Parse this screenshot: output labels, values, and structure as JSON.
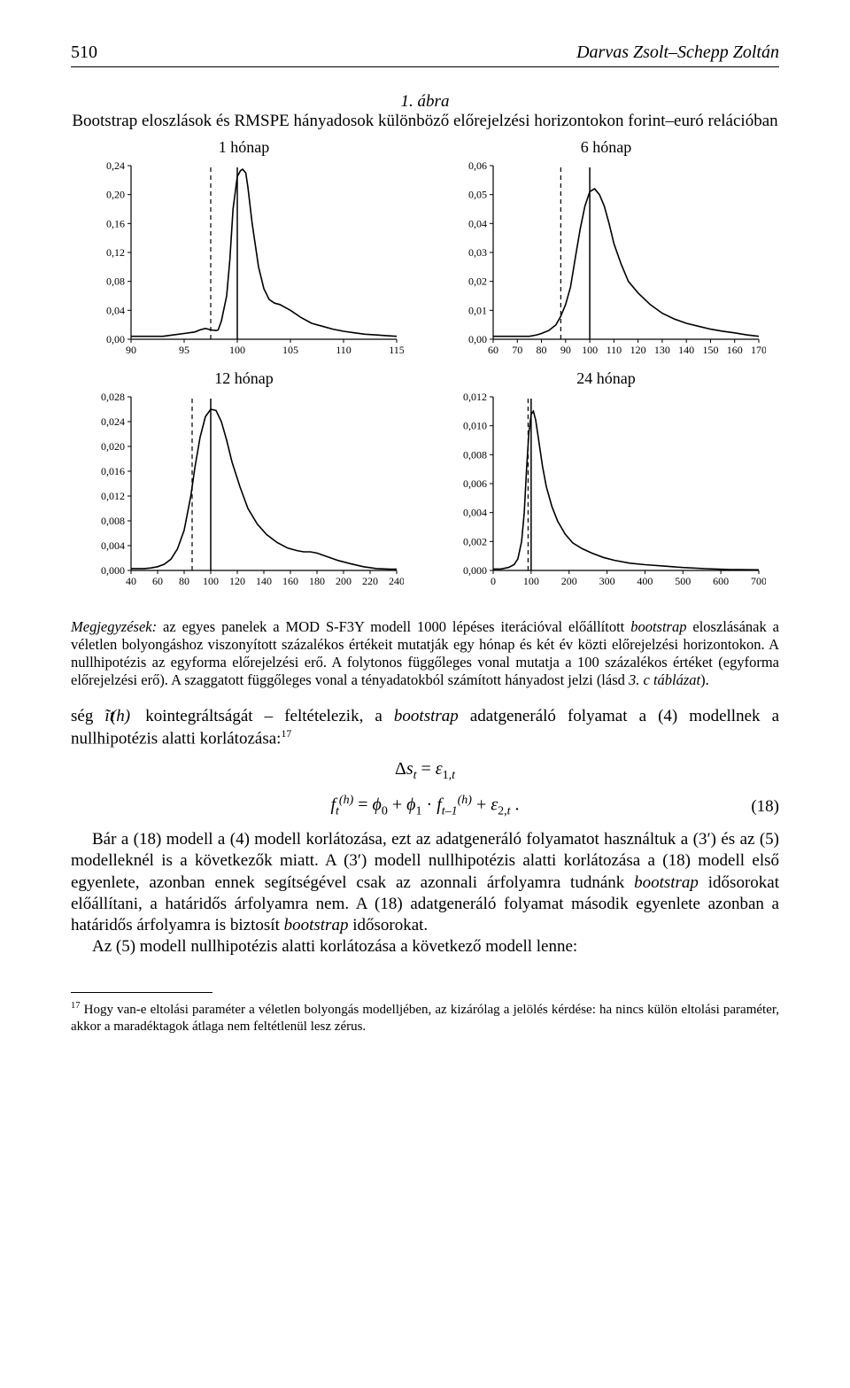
{
  "meta": {
    "at": "kointegráltságát – feltételezik, a"
  },
  "header": {
    "page_number": "510",
    "authors": "Darvas Zsolt–Schepp Zoltán"
  },
  "figure": {
    "label": "1. ábra",
    "caption": "Bootstrap eloszlások és RMSPE hányadosok különböző előrejelzési horizontokon forint–euró relációban",
    "axis_style": {
      "axis_color": "#000000",
      "curve_color": "#000000",
      "solid_line_color": "#000000",
      "dashed_line_color": "#000000",
      "tick_font_size": 12,
      "title_font_size": 18,
      "background": "#ffffff"
    },
    "panels": [
      {
        "title": "1 hónap",
        "xlim": [
          90,
          115
        ],
        "xticks": [
          90,
          95,
          100,
          105,
          110,
          115
        ],
        "ylim": [
          0,
          0.24
        ],
        "yticks": [
          0.0,
          0.04,
          0.08,
          0.12,
          0.16,
          0.2,
          0.24
        ],
        "yformat": "0,00",
        "solid_x": 100,
        "dashed_x": 97.5,
        "curve": [
          [
            90,
            0.004
          ],
          [
            91,
            0.004
          ],
          [
            92,
            0.004
          ],
          [
            93,
            0.004
          ],
          [
            94,
            0.006
          ],
          [
            95,
            0.008
          ],
          [
            96,
            0.01
          ],
          [
            96.5,
            0.013
          ],
          [
            97,
            0.015
          ],
          [
            97.5,
            0.013
          ],
          [
            98,
            0.012
          ],
          [
            98.2,
            0.013
          ],
          [
            98.5,
            0.025
          ],
          [
            99,
            0.06
          ],
          [
            99.3,
            0.11
          ],
          [
            99.6,
            0.18
          ],
          [
            100,
            0.225
          ],
          [
            100.3,
            0.233
          ],
          [
            100.5,
            0.235
          ],
          [
            100.8,
            0.23
          ],
          [
            101,
            0.21
          ],
          [
            101.4,
            0.16
          ],
          [
            102,
            0.1
          ],
          [
            102.5,
            0.07
          ],
          [
            103,
            0.055
          ],
          [
            103.5,
            0.05
          ],
          [
            104,
            0.048
          ],
          [
            105,
            0.04
          ],
          [
            106,
            0.03
          ],
          [
            107,
            0.022
          ],
          [
            108,
            0.018
          ],
          [
            109,
            0.014
          ],
          [
            110,
            0.011
          ],
          [
            111,
            0.009
          ],
          [
            112,
            0.007
          ],
          [
            113,
            0.006
          ],
          [
            114,
            0.005
          ],
          [
            115,
            0.004
          ]
        ]
      },
      {
        "title": "6 hónap",
        "xlim": [
          60,
          170
        ],
        "xticks": [
          60,
          70,
          80,
          90,
          100,
          110,
          120,
          130,
          140,
          150,
          160,
          170
        ],
        "ylim": [
          0,
          0.06
        ],
        "yticks": [
          0.0,
          0.01,
          0.02,
          0.03,
          0.04,
          0.05,
          0.06
        ],
        "yformat": "0,00",
        "solid_x": 100,
        "dashed_x": 88,
        "curve": [
          [
            60,
            0.001
          ],
          [
            65,
            0.001
          ],
          [
            70,
            0.001
          ],
          [
            75,
            0.001
          ],
          [
            78,
            0.0015
          ],
          [
            80,
            0.002
          ],
          [
            83,
            0.003
          ],
          [
            86,
            0.005
          ],
          [
            88,
            0.008
          ],
          [
            90,
            0.012
          ],
          [
            92,
            0.018
          ],
          [
            94,
            0.028
          ],
          [
            96,
            0.038
          ],
          [
            98,
            0.046
          ],
          [
            100,
            0.051
          ],
          [
            102,
            0.052
          ],
          [
            104,
            0.05
          ],
          [
            106,
            0.046
          ],
          [
            108,
            0.04
          ],
          [
            110,
            0.033
          ],
          [
            113,
            0.026
          ],
          [
            116,
            0.02
          ],
          [
            120,
            0.016
          ],
          [
            125,
            0.012
          ],
          [
            130,
            0.009
          ],
          [
            135,
            0.007
          ],
          [
            140,
            0.0055
          ],
          [
            145,
            0.0045
          ],
          [
            150,
            0.0035
          ],
          [
            155,
            0.0028
          ],
          [
            160,
            0.0022
          ],
          [
            165,
            0.0015
          ],
          [
            170,
            0.001
          ]
        ]
      },
      {
        "title": "12 hónap",
        "xlim": [
          40,
          240
        ],
        "xticks": [
          40,
          60,
          80,
          100,
          120,
          140,
          160,
          180,
          200,
          220,
          240
        ],
        "ylim": [
          0,
          0.028
        ],
        "yticks": [
          0.0,
          0.004,
          0.008,
          0.012,
          0.016,
          0.02,
          0.024,
          0.028
        ],
        "yformat": "0,000",
        "solid_x": 100,
        "dashed_x": 86,
        "curve": [
          [
            40,
            0.0003
          ],
          [
            50,
            0.0003
          ],
          [
            55,
            0.0004
          ],
          [
            60,
            0.0006
          ],
          [
            65,
            0.001
          ],
          [
            70,
            0.0018
          ],
          [
            75,
            0.0035
          ],
          [
            80,
            0.0065
          ],
          [
            85,
            0.012
          ],
          [
            88,
            0.0165
          ],
          [
            92,
            0.0215
          ],
          [
            96,
            0.0248
          ],
          [
            100,
            0.026
          ],
          [
            104,
            0.0258
          ],
          [
            108,
            0.024
          ],
          [
            112,
            0.021
          ],
          [
            116,
            0.0175
          ],
          [
            122,
            0.0135
          ],
          [
            128,
            0.01
          ],
          [
            135,
            0.0075
          ],
          [
            142,
            0.0058
          ],
          [
            150,
            0.0045
          ],
          [
            158,
            0.0036
          ],
          [
            165,
            0.0032
          ],
          [
            170,
            0.003
          ],
          [
            175,
            0.003
          ],
          [
            180,
            0.0028
          ],
          [
            188,
            0.0022
          ],
          [
            196,
            0.0016
          ],
          [
            205,
            0.0011
          ],
          [
            215,
            0.0006
          ],
          [
            225,
            0.0003
          ],
          [
            235,
            0.0002
          ],
          [
            240,
            0.0002
          ]
        ]
      },
      {
        "title": "24 hónap",
        "xlim": [
          0,
          700
        ],
        "xticks": [
          0,
          100,
          200,
          300,
          400,
          500,
          600,
          700
        ],
        "ylim": [
          0,
          0.012
        ],
        "yticks": [
          0.0,
          0.002,
          0.004,
          0.006,
          0.008,
          0.01,
          0.012
        ],
        "yformat": "0,000",
        "solid_x": 100,
        "dashed_x": 92,
        "curve": [
          [
            0,
            0.0001
          ],
          [
            20,
            0.0001
          ],
          [
            40,
            0.0002
          ],
          [
            55,
            0.0004
          ],
          [
            65,
            0.0008
          ],
          [
            75,
            0.002
          ],
          [
            82,
            0.004
          ],
          [
            88,
            0.007
          ],
          [
            94,
            0.0095
          ],
          [
            100,
            0.0108
          ],
          [
            106,
            0.011
          ],
          [
            112,
            0.0104
          ],
          [
            120,
            0.009
          ],
          [
            130,
            0.0072
          ],
          [
            140,
            0.0058
          ],
          [
            155,
            0.0044
          ],
          [
            170,
            0.0034
          ],
          [
            190,
            0.0025
          ],
          [
            210,
            0.0019
          ],
          [
            235,
            0.0015
          ],
          [
            260,
            0.0012
          ],
          [
            290,
            0.0009
          ],
          [
            320,
            0.0007
          ],
          [
            360,
            0.0005
          ],
          [
            400,
            0.0004
          ],
          [
            450,
            0.0003
          ],
          [
            500,
            0.0002
          ],
          [
            560,
            0.00012
          ],
          [
            620,
            7e-05
          ],
          [
            700,
            4e-05
          ]
        ]
      }
    ]
  },
  "notes": {
    "lead": "Megjegyzések:",
    "text": " az egyes panelek a MOD S-F3Y modell 1000 lépéses iterációval előállított ",
    "text2": " eloszlásának a véletlen bolyongáshoz viszonyított százalékos értékeit mutatják egy hónap és két év közti előrejelzési horizontokon. A nullhipotézis az egyforma előrejelzési erő. A folytonos függőleges vonal mutatja a 100 százalékos értéket (egyforma előrejelzési erő). A szaggatott függőleges vonal a tényadatokból számított hányadost jelzi (lásd ",
    "tab": "3. c táblázat",
    "text3": ")."
  },
  "body": {
    "line1a": "ség ",
    "line1b": " adatgeneráló folyamat a (4) modellnek a nullhipotézis alatti korlátozása:",
    "fnref1": "17",
    "eq_num": "(18)",
    "para2": "Bár a (18) modell a (4) modell korlátozása, ezt az adatgeneráló folyamatot használtuk a (3′) és az (5) modelleknél is a következők miatt. A (3′) modell nullhipotézis alatti korlátozása a (18) modell első egyenlete, azonban ennek segítségével csak az azonnali árfolyamra tudnánk ",
    "para2b": " idősorokat előállítani, a határidős árfolyamra nem. A (18) adatgeneráló folyamat második egyenlete azonban a határidős árfolyamra is biztosít ",
    "para2c": " idősorokat.",
    "para3": "Az (5) modell nullhipotézis alatti korlátozása a következő modell lenne:"
  },
  "footnote": {
    "ref": "17",
    "text": " Hogy van-e eltolási paraméter a véletlen bolyongás modelljében, az kizárólag a jelölés kérdése: ha nincs külön eltolási paraméter, akkor a maradéktagok átlaga nem feltétlenül lesz zérus."
  }
}
